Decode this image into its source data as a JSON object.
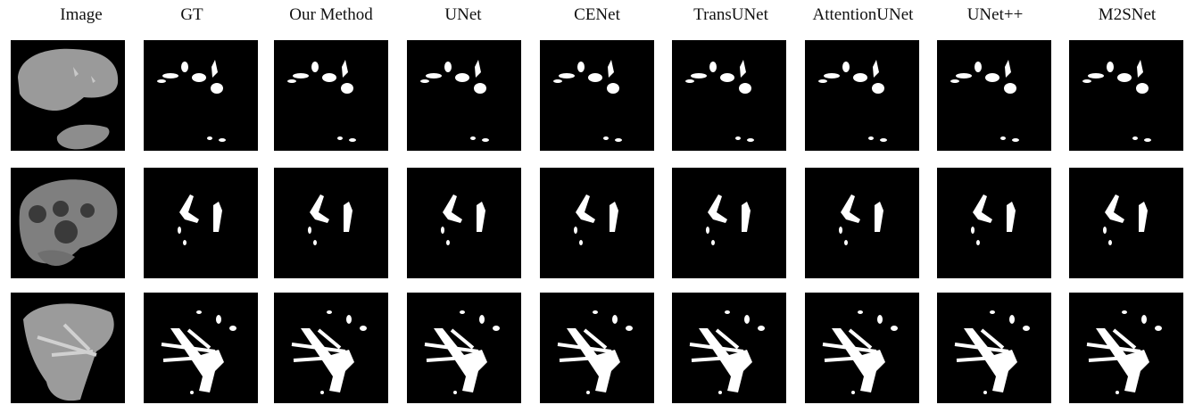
{
  "figure": {
    "columns": [
      {
        "title": "Image",
        "kind": "ct-image"
      },
      {
        "title": "GT",
        "kind": "mask"
      },
      {
        "title": "Our Method",
        "kind": "mask"
      },
      {
        "title": "UNet",
        "kind": "mask"
      },
      {
        "title": "CENet",
        "kind": "mask"
      },
      {
        "title": "TransUNet",
        "kind": "mask"
      },
      {
        "title": "AttentionUNet",
        "kind": "mask"
      },
      {
        "title": "UNet++",
        "kind": "mask"
      },
      {
        "title": "M2SNet",
        "kind": "mask"
      }
    ],
    "rows": [
      {
        "label": "row-1"
      },
      {
        "label": "row-2"
      },
      {
        "label": "row-3"
      }
    ],
    "colors": {
      "background": "#000000",
      "mask": "#ffffff",
      "ct_tissue": "#8f8f8f"
    }
  }
}
